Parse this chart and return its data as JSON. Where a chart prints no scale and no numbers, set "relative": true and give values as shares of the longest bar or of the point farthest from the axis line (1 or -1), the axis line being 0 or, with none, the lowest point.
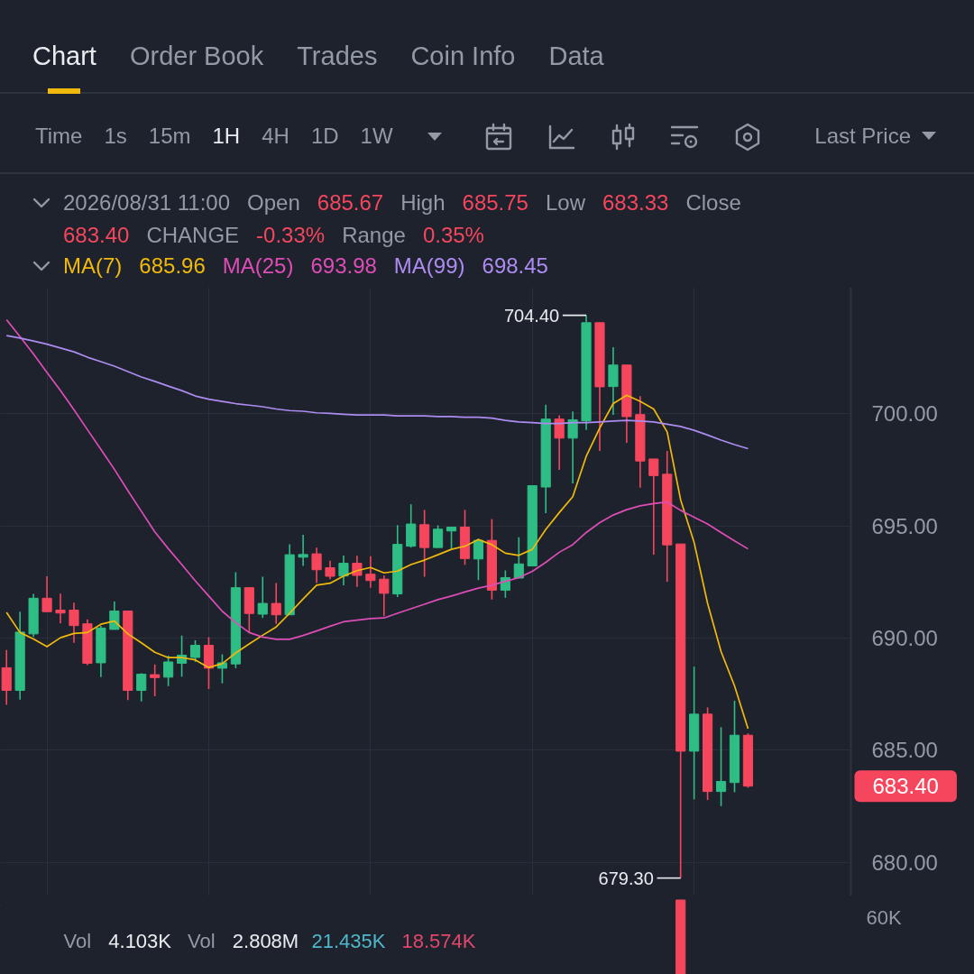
{
  "chart_data": [
    {
      "type": "candlestick",
      "categories": [
        null,
        null,
        null,
        null,
        null,
        null,
        null,
        null,
        null,
        null,
        null,
        null,
        null,
        null,
        null,
        null,
        null,
        null,
        null,
        null,
        null,
        null,
        null,
        null,
        null,
        null,
        null,
        null,
        null,
        null,
        null,
        null,
        null,
        null,
        null,
        null,
        null,
        null,
        null,
        null,
        null,
        null,
        null,
        null,
        null,
        null,
        null,
        null,
        null,
        null,
        null,
        null,
        null,
        null,
        null,
        null
      ],
      "ohlc": [
        [
          688.68,
          689.47,
          687.03,
          687.67
        ],
        [
          687.67,
          691.18,
          687.26,
          690.27
        ],
        [
          690.19,
          691.97,
          690.05,
          691.78
        ],
        [
          691.78,
          692.76,
          691.18,
          691.18
        ],
        [
          691.25,
          691.98,
          690.66,
          691.12
        ],
        [
          691.25,
          691.58,
          689.79,
          690.56
        ],
        [
          690.64,
          690.84,
          688.8,
          688.88
        ],
        [
          688.9,
          690.55,
          688.26,
          690.45
        ],
        [
          690.39,
          691.63,
          690.39,
          691.21
        ],
        [
          691.21,
          691.21,
          687.24,
          687.67
        ],
        [
          687.67,
          688.43,
          687.18,
          688.39
        ],
        [
          688.37,
          688.83,
          687.41,
          688.24
        ],
        [
          688.26,
          689.22,
          687.86,
          688.94
        ],
        [
          688.88,
          690.11,
          688.28,
          689.24
        ],
        [
          689.14,
          689.9,
          688.94,
          689.68
        ],
        [
          689.68,
          690.04,
          687.73,
          688.66
        ],
        [
          688.66,
          689.28,
          687.98,
          688.9
        ],
        [
          688.85,
          692.94,
          688.66,
          692.25
        ],
        [
          692.25,
          692.25,
          690.24,
          691.1
        ],
        [
          691.07,
          692.74,
          690.9,
          691.55
        ],
        [
          691.55,
          692.46,
          690.64,
          691.04
        ],
        [
          691.04,
          694.19,
          691.04,
          693.72
        ],
        [
          693.61,
          694.61,
          693.22,
          693.73
        ],
        [
          693.76,
          694.04,
          692.46,
          693.05
        ],
        [
          693.14,
          693.45,
          692.63,
          692.76
        ],
        [
          692.77,
          693.68,
          692.36,
          693.34
        ],
        [
          693.34,
          693.67,
          692.29,
          692.8
        ],
        [
          692.85,
          693.65,
          692.25,
          692.57
        ],
        [
          692.63,
          692.8,
          690.98,
          692.0
        ],
        [
          691.97,
          695.04,
          691.83,
          694.18
        ],
        [
          694.1,
          695.97,
          694.04,
          695.09
        ],
        [
          695.06,
          695.72,
          692.74,
          694.04
        ],
        [
          694.04,
          695.03,
          694.04,
          694.86
        ],
        [
          694.78,
          694.95,
          693.99,
          694.95
        ],
        [
          694.95,
          695.72,
          693.27,
          693.55
        ],
        [
          693.53,
          694.44,
          692.59,
          694.36
        ],
        [
          694.36,
          695.31,
          691.72,
          692.14
        ],
        [
          692.14,
          693.02,
          691.8,
          692.7
        ],
        [
          692.68,
          694.5,
          692.68,
          693.31
        ],
        [
          693.22,
          696.8,
          693.22,
          696.8
        ],
        [
          696.74,
          700.41,
          695.57,
          699.77
        ],
        [
          699.77,
          699.94,
          697.5,
          698.92
        ],
        [
          698.92,
          700.11,
          696.9,
          699.74
        ],
        [
          699.69,
          704.4,
          699.28,
          704.07
        ],
        [
          704.07,
          704.07,
          698.35,
          701.21
        ],
        [
          701.22,
          702.98,
          699.96,
          702.18
        ],
        [
          702.18,
          702.18,
          698.71,
          699.88
        ],
        [
          699.97,
          700.79,
          696.71,
          697.9
        ],
        [
          697.99,
          697.99,
          693.72,
          697.25
        ],
        [
          697.31,
          698.35,
          692.51,
          694.16
        ],
        [
          694.2,
          694.2,
          679.3,
          684.96
        ],
        [
          684.96,
          688.73,
          682.81,
          686.61
        ],
        [
          686.61,
          686.91,
          682.78,
          683.16
        ],
        [
          683.16,
          686.03,
          682.51,
          683.61
        ],
        [
          683.56,
          687.21,
          683.13,
          685.67
        ],
        [
          685.67,
          685.75,
          683.33,
          683.4
        ]
      ],
      "colors": [
        "#f6465d",
        "#2ebd85",
        "#2ebd85",
        "#f6465d",
        "#f6465d",
        "#f6465d",
        "#f6465d",
        "#2ebd85",
        "#2ebd85",
        "#f6465d",
        "#2ebd85",
        "#f6465d",
        "#2ebd85",
        "#2ebd85",
        "#2ebd85",
        "#f6465d",
        "#2ebd85",
        "#2ebd85",
        "#f6465d",
        "#2ebd85",
        "#f6465d",
        "#2ebd85",
        "#2ebd85",
        "#f6465d",
        "#f6465d",
        "#2ebd85",
        "#f6465d",
        "#f6465d",
        "#f6465d",
        "#2ebd85",
        "#2ebd85",
        "#f6465d",
        "#2ebd85",
        "#2ebd85",
        "#f6465d",
        "#2ebd85",
        "#f6465d",
        "#2ebd85",
        "#2ebd85",
        "#2ebd85",
        "#2ebd85",
        "#f6465d",
        "#2ebd85",
        "#2ebd85",
        "#f6465d",
        "#2ebd85",
        "#f6465d",
        "#f6465d",
        "#f6465d",
        "#f6465d",
        "#f6465d",
        "#2ebd85",
        "#f6465d",
        "#2ebd85",
        "#2ebd85",
        "#f6465d"
      ],
      "series": [
        {
          "name": "MA(7)",
          "type": "line",
          "color": "#f0b90b",
          "values": [
            691.15,
            690.25,
            689.96,
            689.62,
            690.02,
            690.21,
            690.25,
            690.62,
            690.76,
            690.19,
            689.79,
            689.37,
            689.13,
            689.13,
            689.03,
            688.69,
            688.86,
            689.34,
            689.74,
            690.13,
            690.5,
            691.11,
            691.75,
            692.36,
            692.45,
            692.77,
            693.01,
            693.15,
            692.91,
            692.99,
            693.28,
            693.48,
            693.72,
            693.96,
            694.1,
            694.4,
            694.17,
            693.79,
            693.69,
            693.96,
            694.85,
            695.6,
            696.31,
            698.11,
            699.37,
            700.46,
            700.83,
            700.56,
            700.22,
            699.2,
            696.17,
            694.27,
            691.55,
            689.4,
            687.87,
            685.96
          ]
        },
        {
          "name": "MA(25)",
          "type": "line",
          "color": "#de4db6",
          "values": [
            704.2,
            703.45,
            702.67,
            701.85,
            701.04,
            700.19,
            699.3,
            698.42,
            697.53,
            696.58,
            695.66,
            694.74,
            693.99,
            693.28,
            692.56,
            691.88,
            691.2,
            690.69,
            690.25,
            690.05,
            689.95,
            689.95,
            690.12,
            690.32,
            690.53,
            690.73,
            690.8,
            690.87,
            690.9,
            691.11,
            691.31,
            691.51,
            691.72,
            691.88,
            692.06,
            692.23,
            692.36,
            692.53,
            692.7,
            692.98,
            693.38,
            693.83,
            694.17,
            694.71,
            695.15,
            695.49,
            695.73,
            695.9,
            696.0,
            696.07,
            695.7,
            695.39,
            695.09,
            694.71,
            694.34,
            693.98
          ]
        },
        {
          "name": "MA(99)",
          "type": "line",
          "color": "#ad8cf2",
          "values": [
            703.49,
            703.38,
            703.25,
            703.11,
            702.94,
            702.77,
            702.53,
            702.33,
            702.13,
            701.89,
            701.65,
            701.45,
            701.24,
            701.04,
            700.8,
            700.66,
            700.56,
            700.46,
            700.39,
            700.32,
            700.22,
            700.15,
            700.12,
            700.05,
            700.02,
            699.98,
            699.95,
            699.95,
            699.95,
            699.91,
            699.91,
            699.91,
            699.88,
            699.88,
            699.85,
            699.85,
            699.81,
            699.71,
            699.64,
            699.61,
            699.57,
            699.57,
            699.61,
            699.61,
            699.64,
            699.68,
            699.71,
            699.68,
            699.64,
            699.54,
            699.44,
            699.27,
            699.06,
            698.83,
            698.63,
            698.45
          ]
        }
      ],
      "ylim": [
        678.5,
        705.65
      ],
      "yticks": [
        {
          "value": 680,
          "label": "680.00"
        },
        {
          "value": 685,
          "label": "685.00"
        },
        {
          "value": 690,
          "label": "690.00"
        },
        {
          "value": 695,
          "label": "695.00"
        },
        {
          "value": 700,
          "label": "700.00"
        }
      ],
      "grid": true,
      "legend": "top left",
      "annotations": [
        "Chart",
        "Order Book",
        "Trades",
        "Coin Info",
        "Data",
        "Time",
        "1s",
        "15m",
        "1H",
        "4H",
        "1D",
        "1W",
        "Last Price",
        "2026/08/31 11:00",
        "Open",
        "685.67",
        "High",
        "685.75",
        "Low",
        "683.33",
        "Close",
        "683.40",
        "CHANGE",
        "-0.33%",
        "Range",
        "0.35%",
        "704.40",
        "679.30",
        "683.40",
        "685.96",
        "693.98",
        "698.45"
      ]
    },
    {
      "type": "bar",
      "categories": [
        null,
        null,
        null,
        null,
        null,
        null,
        null,
        null,
        null,
        null,
        null,
        null,
        null,
        null,
        null,
        null,
        null,
        null,
        null,
        null,
        null,
        null,
        null,
        null,
        null,
        null,
        null,
        null,
        null,
        null,
        null,
        null,
        null,
        null,
        null,
        null,
        null,
        null,
        null,
        null,
        null,
        null,
        null,
        null,
        null,
        null,
        null,
        null,
        null,
        null,
        null,
        null,
        null,
        null,
        null,
        null
      ],
      "values": [
        null,
        null,
        null,
        null,
        null,
        null,
        null,
        null,
        null,
        null,
        null,
        null,
        null,
        null,
        null,
        null,
        null,
        null,
        null,
        null,
        null,
        null,
        null,
        null,
        null,
        null,
        null,
        null,
        null,
        null,
        null,
        null,
        null,
        null,
        null,
        null,
        null,
        null,
        null,
        null,
        null,
        null,
        null,
        null,
        null,
        null,
        null,
        null,
        null,
        null,
        1,
        null,
        null,
        null,
        null,
        null
      ],
      "relative": true,
      "color": "#f6465d",
      "annotations": [
        "Vol",
        "4.103K",
        "Vol",
        "2.808M",
        "21.435K",
        "18.574K",
        "60K"
      ]
    }
  ]
}
